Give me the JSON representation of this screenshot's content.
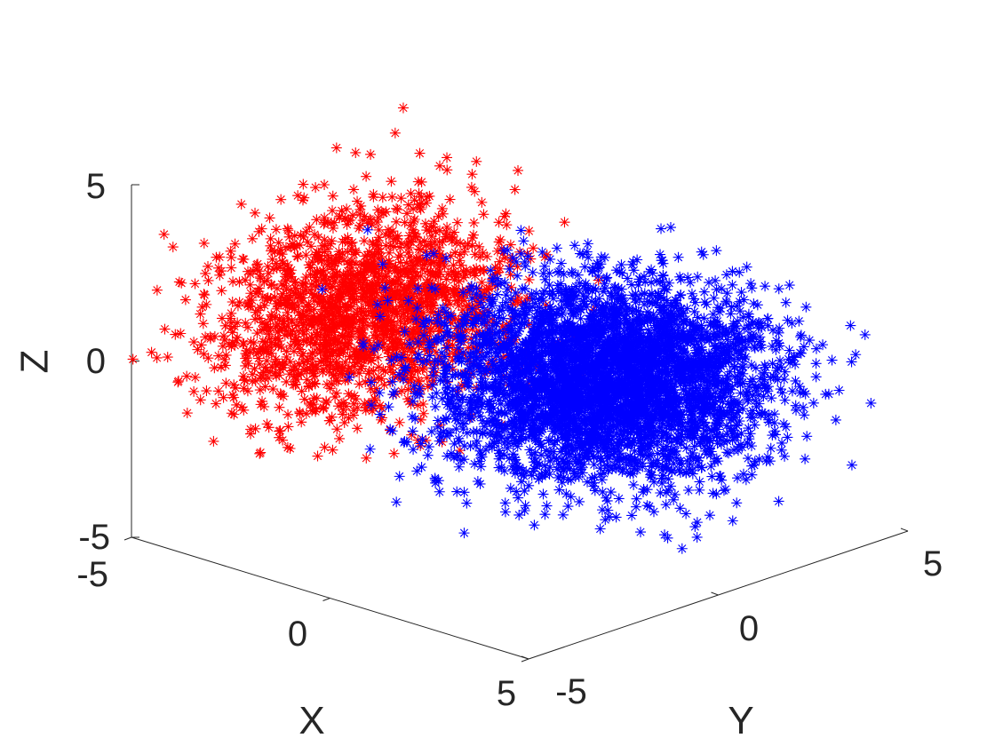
{
  "chart_data": {
    "type": "scatter",
    "projection": "3d",
    "marker": "asterisk",
    "grid": false,
    "xlabel": "X",
    "ylabel": "Y",
    "zlabel": "Z",
    "xlim": [
      -5,
      5
    ],
    "ylim": [
      -5,
      5
    ],
    "zlim": [
      -5,
      5
    ],
    "xticks": [
      "-5",
      "0",
      "5"
    ],
    "yticks": [
      "-5",
      "0",
      "5"
    ],
    "zticks": [
      "-5",
      "0",
      "5"
    ],
    "series": [
      {
        "color": "#ff0000",
        "distribution": "gaussian cloud",
        "center": [
          -2.5,
          -1.5,
          1.0
        ],
        "spread": [
          1.1,
          1.6,
          1.3
        ],
        "count": 1900
      },
      {
        "color": "#0000ff",
        "distribution": "gaussian cloud",
        "center": [
          1.2,
          1.0,
          -0.6
        ],
        "spread": [
          1.5,
          1.5,
          1.2
        ],
        "count": 4200
      }
    ]
  }
}
